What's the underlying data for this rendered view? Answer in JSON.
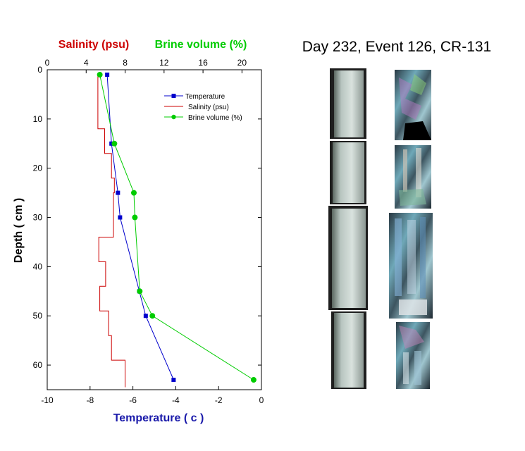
{
  "page_title": "Day 232, Event 126, CR-131",
  "colors": {
    "temperature": "#0000cc",
    "salinity": "#cc0000",
    "brine": "#00cc00",
    "axis_blue": "#1a1aaa"
  },
  "chart_data": {
    "type": "line",
    "title": "",
    "ylabel": "Depth ( cm )",
    "xlabel": "Temperature ( c )",
    "top_axis_labels": {
      "salinity": "Salinity (psu)",
      "brine": "Brine volume (%)"
    },
    "ylim": [
      0,
      65
    ],
    "y_inverted": true,
    "x_bottom": {
      "range": [
        -10,
        0
      ],
      "ticks": [
        -10,
        -8,
        -6,
        -4,
        -2,
        0
      ]
    },
    "x_top": {
      "range": [
        0,
        22
      ],
      "ticks": [
        0,
        4,
        8,
        12,
        16,
        20
      ]
    },
    "y_ticks": [
      0,
      10,
      20,
      30,
      40,
      50,
      60
    ],
    "grid": false,
    "legend_position": "top-right",
    "legend": [
      "Temperature",
      "Salinity (psu)",
      "Brine volume (%)"
    ],
    "series": [
      {
        "name": "Temperature",
        "axis": "bottom",
        "style": "line-square",
        "points": [
          [
            -7.2,
            1
          ],
          [
            -7.0,
            15
          ],
          [
            -6.7,
            25
          ],
          [
            -6.6,
            30
          ],
          [
            -5.7,
            45
          ],
          [
            -5.4,
            50
          ],
          [
            -4.1,
            63
          ]
        ]
      },
      {
        "name": "Salinity (psu)",
        "axis": "top",
        "style": "step",
        "points": [
          [
            5.2,
            1
          ],
          [
            5.2,
            12
          ],
          [
            5.9,
            12
          ],
          [
            5.9,
            17
          ],
          [
            6.6,
            17
          ],
          [
            6.6,
            22
          ],
          [
            6.9,
            22
          ],
          [
            6.9,
            25
          ],
          [
            6.8,
            25
          ],
          [
            6.8,
            34
          ],
          [
            5.3,
            34
          ],
          [
            5.3,
            39
          ],
          [
            6.0,
            39
          ],
          [
            6.0,
            44
          ],
          [
            5.4,
            44
          ],
          [
            5.4,
            49
          ],
          [
            6.3,
            49
          ],
          [
            6.3,
            54
          ],
          [
            6.6,
            54
          ],
          [
            6.6,
            59
          ],
          [
            8.0,
            59
          ],
          [
            8.0,
            64.5
          ]
        ]
      },
      {
        "name": "Brine volume (%)",
        "axis": "top",
        "style": "line-circle",
        "points": [
          [
            5.4,
            1
          ],
          [
            6.9,
            15
          ],
          [
            8.9,
            25
          ],
          [
            9.0,
            30
          ],
          [
            9.5,
            45
          ],
          [
            10.8,
            50
          ],
          [
            21.2,
            63
          ]
        ]
      }
    ]
  }
}
